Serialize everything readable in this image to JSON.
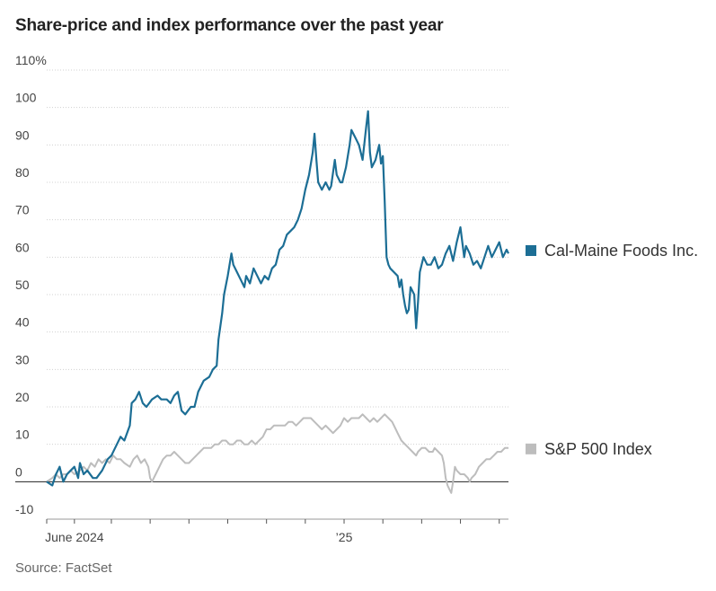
{
  "title": "Share-price and index performance over the past year",
  "source": "Source: FactSet",
  "chart_data": {
    "type": "line",
    "x_domain": [
      0,
      250
    ],
    "ylim": [
      -10,
      110
    ],
    "y_ticks": [
      -10,
      0,
      10,
      20,
      30,
      40,
      50,
      60,
      70,
      80,
      90,
      100,
      110
    ],
    "y_tick_labels": [
      "-10",
      "0",
      "10",
      "20",
      "30",
      "40",
      "50",
      "60",
      "70",
      "80",
      "90",
      "100",
      "110%"
    ],
    "x_tick_positions": [
      0,
      15,
      35,
      56,
      77,
      98,
      119,
      140,
      161,
      182,
      203,
      224,
      245
    ],
    "x_labels": [
      {
        "text": "June 2024",
        "x": 15
      },
      {
        "text": "’25",
        "x": 161
      }
    ],
    "series": [
      {
        "name": "Cal-Maine Foods Inc.",
        "color": "#1c6e95",
        "points": [
          [
            0,
            0
          ],
          [
            3,
            -1
          ],
          [
            5,
            2
          ],
          [
            7,
            4
          ],
          [
            8,
            2
          ],
          [
            9,
            0
          ],
          [
            11,
            2
          ],
          [
            13,
            3
          ],
          [
            15,
            4
          ],
          [
            17,
            1
          ],
          [
            18,
            5
          ],
          [
            20,
            2
          ],
          [
            22,
            3
          ],
          [
            25,
            1
          ],
          [
            27,
            1
          ],
          [
            30,
            3
          ],
          [
            33,
            6
          ],
          [
            35,
            7
          ],
          [
            37,
            9
          ],
          [
            38,
            10
          ],
          [
            40,
            12
          ],
          [
            42,
            11
          ],
          [
            45,
            15
          ],
          [
            46,
            21
          ],
          [
            48,
            22
          ],
          [
            50,
            24
          ],
          [
            52,
            21
          ],
          [
            54,
            20
          ],
          [
            57,
            22
          ],
          [
            60,
            23
          ],
          [
            62,
            22
          ],
          [
            65,
            22
          ],
          [
            67,
            21
          ],
          [
            69,
            23
          ],
          [
            71,
            24
          ],
          [
            73,
            19
          ],
          [
            75,
            18
          ],
          [
            78,
            20
          ],
          [
            80,
            20
          ],
          [
            82,
            24
          ],
          [
            85,
            27
          ],
          [
            88,
            28
          ],
          [
            90,
            30
          ],
          [
            92,
            31
          ],
          [
            93,
            38
          ],
          [
            95,
            45
          ],
          [
            96,
            50
          ],
          [
            98,
            55
          ],
          [
            100,
            61
          ],
          [
            101,
            58
          ],
          [
            103,
            56
          ],
          [
            105,
            54
          ],
          [
            107,
            52
          ],
          [
            108,
            55
          ],
          [
            110,
            53
          ],
          [
            112,
            57
          ],
          [
            114,
            55
          ],
          [
            116,
            53
          ],
          [
            118,
            55
          ],
          [
            120,
            54
          ],
          [
            122,
            57
          ],
          [
            124,
            58
          ],
          [
            126,
            62
          ],
          [
            128,
            63
          ],
          [
            130,
            66
          ],
          [
            132,
            67
          ],
          [
            134,
            68
          ],
          [
            136,
            70
          ],
          [
            138,
            73
          ],
          [
            140,
            78
          ],
          [
            142,
            82
          ],
          [
            144,
            88
          ],
          [
            145,
            93
          ],
          [
            146,
            86
          ],
          [
            147,
            80
          ],
          [
            149,
            78
          ],
          [
            151,
            80
          ],
          [
            153,
            78
          ],
          [
            154,
            79
          ],
          [
            156,
            86
          ],
          [
            157,
            82
          ],
          [
            159,
            80
          ],
          [
            160,
            80
          ],
          [
            162,
            84
          ],
          [
            164,
            90
          ],
          [
            165,
            94
          ],
          [
            167,
            92
          ],
          [
            169,
            90
          ],
          [
            171,
            86
          ],
          [
            173,
            95
          ],
          [
            174,
            99
          ],
          [
            175,
            88
          ],
          [
            176,
            84
          ],
          [
            178,
            86
          ],
          [
            180,
            90
          ],
          [
            181,
            85
          ],
          [
            182,
            87
          ],
          [
            183,
            75
          ],
          [
            184,
            60
          ],
          [
            185,
            58
          ],
          [
            186,
            57
          ],
          [
            188,
            56
          ],
          [
            190,
            55
          ],
          [
            191,
            52
          ],
          [
            192,
            54
          ],
          [
            193,
            50
          ],
          [
            194,
            47
          ],
          [
            195,
            45
          ],
          [
            196,
            46
          ],
          [
            197,
            52
          ],
          [
            199,
            50
          ],
          [
            200,
            41
          ],
          [
            201,
            48
          ],
          [
            202,
            56
          ],
          [
            204,
            60
          ],
          [
            206,
            58
          ],
          [
            208,
            58
          ],
          [
            210,
            60
          ],
          [
            212,
            57
          ],
          [
            214,
            58
          ],
          [
            216,
            61
          ],
          [
            217,
            62
          ],
          [
            218,
            63
          ],
          [
            220,
            59
          ],
          [
            222,
            64
          ],
          [
            224,
            68
          ],
          [
            226,
            60
          ],
          [
            227,
            63
          ],
          [
            229,
            61
          ],
          [
            231,
            58
          ],
          [
            233,
            59
          ],
          [
            235,
            57
          ],
          [
            237,
            60
          ],
          [
            239,
            63
          ],
          [
            241,
            60
          ],
          [
            243,
            62
          ],
          [
            245,
            64
          ],
          [
            247,
            60
          ],
          [
            249,
            62
          ],
          [
            250,
            61
          ]
        ]
      },
      {
        "name": "S&P 500 Index",
        "color": "#bdbdbd",
        "points": [
          [
            0,
            0
          ],
          [
            3,
            1
          ],
          [
            5,
            2
          ],
          [
            7,
            1
          ],
          [
            9,
            2
          ],
          [
            11,
            2
          ],
          [
            13,
            3
          ],
          [
            15,
            2
          ],
          [
            18,
            3
          ],
          [
            20,
            4
          ],
          [
            22,
            3
          ],
          [
            24,
            5
          ],
          [
            26,
            4
          ],
          [
            28,
            6
          ],
          [
            30,
            5
          ],
          [
            32,
            6
          ],
          [
            34,
            5
          ],
          [
            36,
            7
          ],
          [
            38,
            6
          ],
          [
            40,
            6
          ],
          [
            42,
            5
          ],
          [
            45,
            4
          ],
          [
            47,
            6
          ],
          [
            49,
            7
          ],
          [
            51,
            5
          ],
          [
            53,
            6
          ],
          [
            55,
            4
          ],
          [
            56,
            1
          ],
          [
            57,
            0
          ],
          [
            58,
            1
          ],
          [
            59,
            2
          ],
          [
            61,
            4
          ],
          [
            63,
            6
          ],
          [
            65,
            7
          ],
          [
            67,
            7
          ],
          [
            69,
            8
          ],
          [
            71,
            7
          ],
          [
            73,
            6
          ],
          [
            75,
            5
          ],
          [
            77,
            5
          ],
          [
            79,
            6
          ],
          [
            81,
            7
          ],
          [
            83,
            8
          ],
          [
            85,
            9
          ],
          [
            87,
            9
          ],
          [
            89,
            9
          ],
          [
            91,
            10
          ],
          [
            93,
            10
          ],
          [
            95,
            11
          ],
          [
            97,
            11
          ],
          [
            99,
            10
          ],
          [
            101,
            10
          ],
          [
            103,
            11
          ],
          [
            105,
            11
          ],
          [
            107,
            10
          ],
          [
            109,
            10
          ],
          [
            111,
            11
          ],
          [
            113,
            10
          ],
          [
            115,
            11
          ],
          [
            117,
            12
          ],
          [
            119,
            14
          ],
          [
            121,
            14
          ],
          [
            123,
            15
          ],
          [
            125,
            15
          ],
          [
            127,
            15
          ],
          [
            129,
            15
          ],
          [
            131,
            16
          ],
          [
            133,
            16
          ],
          [
            135,
            15
          ],
          [
            137,
            16
          ],
          [
            139,
            17
          ],
          [
            141,
            17
          ],
          [
            143,
            17
          ],
          [
            145,
            16
          ],
          [
            147,
            15
          ],
          [
            149,
            14
          ],
          [
            151,
            15
          ],
          [
            153,
            14
          ],
          [
            155,
            13
          ],
          [
            157,
            14
          ],
          [
            159,
            15
          ],
          [
            161,
            17
          ],
          [
            163,
            16
          ],
          [
            165,
            17
          ],
          [
            167,
            17
          ],
          [
            169,
            17
          ],
          [
            171,
            18
          ],
          [
            173,
            17
          ],
          [
            175,
            16
          ],
          [
            177,
            17
          ],
          [
            179,
            16
          ],
          [
            181,
            17
          ],
          [
            183,
            18
          ],
          [
            185,
            17
          ],
          [
            187,
            16
          ],
          [
            189,
            14
          ],
          [
            190,
            13
          ],
          [
            192,
            11
          ],
          [
            194,
            10
          ],
          [
            196,
            9
          ],
          [
            198,
            8
          ],
          [
            200,
            7
          ],
          [
            201,
            8
          ],
          [
            203,
            9
          ],
          [
            205,
            9
          ],
          [
            207,
            8
          ],
          [
            209,
            8
          ],
          [
            210,
            9
          ],
          [
            212,
            8
          ],
          [
            214,
            7
          ],
          [
            215,
            5
          ],
          [
            216,
            1
          ],
          [
            217,
            -1
          ],
          [
            218,
            -2
          ],
          [
            219,
            -3
          ],
          [
            220,
            0
          ],
          [
            221,
            4
          ],
          [
            222,
            3
          ],
          [
            224,
            2
          ],
          [
            226,
            2
          ],
          [
            228,
            1
          ],
          [
            229,
            0
          ],
          [
            230,
            1
          ],
          [
            232,
            2
          ],
          [
            234,
            4
          ],
          [
            236,
            5
          ],
          [
            238,
            6
          ],
          [
            240,
            6
          ],
          [
            242,
            7
          ],
          [
            244,
            8
          ],
          [
            246,
            8
          ],
          [
            248,
            9
          ],
          [
            250,
            9
          ]
        ]
      }
    ]
  }
}
